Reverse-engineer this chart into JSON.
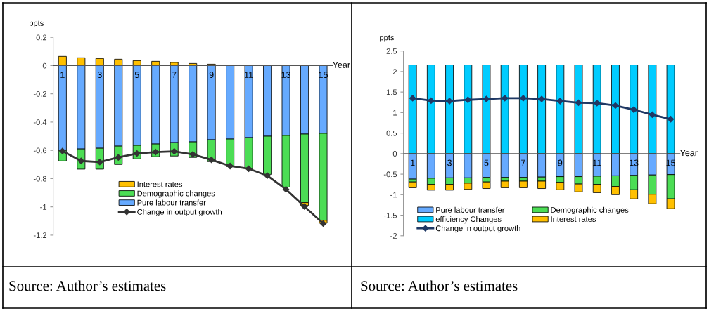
{
  "chart_data": [
    {
      "type": "bar",
      "stacked": true,
      "ylabel": "ppts",
      "xlabel": "Year",
      "categories": [
        "1",
        null,
        "3",
        null,
        "5",
        null,
        "7",
        null,
        "9",
        null,
        "11",
        null,
        "13",
        null,
        "15"
      ],
      "ylim": [
        -1.2,
        0.2
      ],
      "yticks": [
        -1.2,
        -1,
        -0.8,
        -0.6,
        -0.4,
        -0.2,
        0,
        0.2
      ],
      "grid": false,
      "legend": "bottom",
      "marker": "diamond",
      "series": [
        {
          "name": "Pure labour transfer",
          "color": "#66aaff",
          "values": [
            -0.6,
            -0.59,
            -0.585,
            -0.57,
            -0.565,
            -0.555,
            -0.545,
            -0.54,
            -0.525,
            -0.52,
            -0.51,
            -0.5,
            -0.495,
            -0.485,
            -0.48
          ]
        },
        {
          "name": "Demographic changes",
          "color": "#4cdd55",
          "values": [
            -0.075,
            -0.143,
            -0.148,
            -0.13,
            -0.095,
            -0.09,
            -0.095,
            -0.11,
            -0.155,
            -0.195,
            -0.22,
            -0.27,
            -0.365,
            -0.485,
            -0.615
          ]
        },
        {
          "name": "Interest rates",
          "color": "#ffc000",
          "values": [
            0.065,
            0.055,
            0.05,
            0.045,
            0.035,
            0.03,
            0.022,
            0.015,
            0.01,
            null,
            null,
            null,
            null,
            -0.02,
            -0.02
          ]
        },
        {
          "name": "Change in output growth",
          "type": "line",
          "color": "#333333",
          "values": [
            -0.605,
            -0.675,
            -0.683,
            -0.65,
            -0.622,
            -0.612,
            -0.607,
            -0.628,
            -0.667,
            -0.711,
            -0.73,
            -0.779,
            -0.876,
            -0.998,
            -1.118
          ]
        }
      ],
      "annotations": [
        "Source: Author’s estimates"
      ]
    },
    {
      "type": "bar",
      "stacked": true,
      "ylabel": "ppts",
      "xlabel": "Year",
      "categories": [
        "1",
        null,
        "3",
        null,
        "5",
        null,
        "7",
        null,
        "9",
        null,
        "11",
        null,
        "13",
        null,
        "15"
      ],
      "ylim": [
        -2,
        2.5
      ],
      "yticks": [
        -2,
        -1.5,
        -1,
        -0.5,
        0,
        0.5,
        1,
        1.5,
        2,
        2.5
      ],
      "grid": false,
      "legend": "bottom left",
      "marker": "diamond",
      "series": [
        {
          "name": "Pure labour transfer",
          "color": "#66aaff",
          "values": [
            -0.62,
            -0.6,
            -0.59,
            -0.59,
            -0.58,
            -0.58,
            -0.58,
            -0.57,
            -0.56,
            -0.56,
            -0.55,
            -0.54,
            -0.53,
            -0.52,
            -0.51
          ]
        },
        {
          "name": "Demographic changes",
          "color": "#4cdd55",
          "values": [
            -0.07,
            -0.15,
            -0.16,
            -0.13,
            -0.11,
            -0.09,
            -0.09,
            -0.1,
            -0.14,
            -0.18,
            -0.2,
            -0.26,
            -0.35,
            -0.47,
            -0.59
          ]
        },
        {
          "name": "efficiency Changes",
          "color": "#00ccff",
          "values": [
            2.16,
            2.16,
            2.16,
            2.16,
            2.16,
            2.16,
            2.16,
            2.16,
            2.16,
            2.16,
            2.16,
            2.16,
            2.16,
            2.16,
            2.16
          ]
        },
        {
          "name": "Interest rates",
          "color": "#ffc000",
          "values": [
            -0.14,
            -0.14,
            -0.14,
            -0.15,
            -0.16,
            -0.16,
            -0.16,
            -0.18,
            -0.18,
            -0.19,
            -0.2,
            -0.2,
            -0.22,
            -0.23,
            -0.24
          ]
        },
        {
          "name": "Change in output growth",
          "type": "line",
          "color": "#1f3864",
          "values": [
            1.35,
            1.29,
            1.28,
            1.31,
            1.33,
            1.35,
            1.35,
            1.33,
            1.28,
            1.24,
            1.23,
            1.17,
            1.07,
            0.95,
            0.84
          ]
        }
      ],
      "annotations": [
        "Source: Author’s estimates"
      ]
    }
  ]
}
